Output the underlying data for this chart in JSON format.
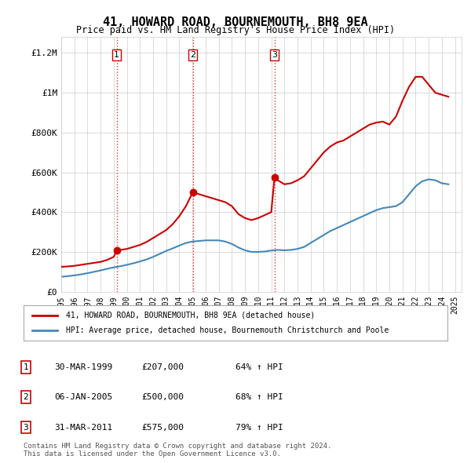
{
  "title": "41, HOWARD ROAD, BOURNEMOUTH, BH8 9EA",
  "subtitle": "Price paid vs. HM Land Registry's House Price Index (HPI)",
  "ylabel_ticks": [
    "£0",
    "£200K",
    "£400K",
    "£600K",
    "£800K",
    "£1M",
    "£1.2M"
  ],
  "ytick_values": [
    0,
    200000,
    400000,
    600000,
    800000,
    1000000,
    1200000
  ],
  "ylim": [
    0,
    1280000
  ],
  "xlim_start": 1995.0,
  "xlim_end": 2025.5,
  "sale_dates": [
    1999.23,
    2005.02,
    2011.25
  ],
  "sale_prices": [
    207000,
    500000,
    575000
  ],
  "sale_labels": [
    "1",
    "2",
    "3"
  ],
  "vline_color": "#cc0000",
  "vline_style": ":",
  "sale_color": "#cc0000",
  "hpi_color": "#6699cc",
  "hpi_line_color": "#4488bb",
  "background_color": "#ffffff",
  "grid_color": "#cccccc",
  "legend_label_red": "41, HOWARD ROAD, BOURNEMOUTH, BH8 9EA (detached house)",
  "legend_label_blue": "HPI: Average price, detached house, Bournemouth Christchurch and Poole",
  "table_rows": [
    [
      "1",
      "30-MAR-1999",
      "£207,000",
      "64% ↑ HPI"
    ],
    [
      "2",
      "06-JAN-2005",
      "£500,000",
      "68% ↑ HPI"
    ],
    [
      "3",
      "31-MAR-2011",
      "£575,000",
      "79% ↑ HPI"
    ]
  ],
  "footnote": "Contains HM Land Registry data © Crown copyright and database right 2024.\nThis data is licensed under the Open Government Licence v3.0.",
  "red_line_x": [
    1995.0,
    1995.5,
    1996.0,
    1996.5,
    1997.0,
    1997.5,
    1998.0,
    1998.5,
    1999.0,
    1999.23,
    1999.5,
    2000.0,
    2000.5,
    2001.0,
    2001.5,
    2002.0,
    2002.5,
    2003.0,
    2003.5,
    2004.0,
    2004.5,
    2005.02,
    2005.5,
    2006.0,
    2006.5,
    2007.0,
    2007.5,
    2008.0,
    2008.5,
    2009.0,
    2009.5,
    2010.0,
    2010.5,
    2011.0,
    2011.25,
    2011.5,
    2012.0,
    2012.5,
    2013.0,
    2013.5,
    2014.0,
    2014.5,
    2015.0,
    2015.5,
    2016.0,
    2016.5,
    2017.0,
    2017.5,
    2018.0,
    2018.5,
    2019.0,
    2019.5,
    2020.0,
    2020.5,
    2021.0,
    2021.5,
    2022.0,
    2022.5,
    2023.0,
    2023.5,
    2024.0,
    2024.5
  ],
  "red_line_y": [
    125000,
    127000,
    130000,
    135000,
    140000,
    145000,
    150000,
    160000,
    175000,
    207000,
    210000,
    215000,
    225000,
    235000,
    250000,
    270000,
    290000,
    310000,
    340000,
    380000,
    430000,
    500000,
    490000,
    480000,
    470000,
    460000,
    450000,
    430000,
    390000,
    370000,
    360000,
    370000,
    385000,
    400000,
    575000,
    560000,
    540000,
    545000,
    560000,
    580000,
    620000,
    660000,
    700000,
    730000,
    750000,
    760000,
    780000,
    800000,
    820000,
    840000,
    850000,
    855000,
    840000,
    880000,
    960000,
    1030000,
    1080000,
    1080000,
    1040000,
    1000000,
    990000,
    980000
  ],
  "blue_line_x": [
    1995.0,
    1995.5,
    1996.0,
    1996.5,
    1997.0,
    1997.5,
    1998.0,
    1998.5,
    1999.0,
    1999.5,
    2000.0,
    2000.5,
    2001.0,
    2001.5,
    2002.0,
    2002.5,
    2003.0,
    2003.5,
    2004.0,
    2004.5,
    2005.0,
    2005.5,
    2006.0,
    2006.5,
    2007.0,
    2007.5,
    2008.0,
    2008.5,
    2009.0,
    2009.5,
    2010.0,
    2010.5,
    2011.0,
    2011.5,
    2012.0,
    2012.5,
    2013.0,
    2013.5,
    2014.0,
    2014.5,
    2015.0,
    2015.5,
    2016.0,
    2016.5,
    2017.0,
    2017.5,
    2018.0,
    2018.5,
    2019.0,
    2019.5,
    2020.0,
    2020.5,
    2021.0,
    2021.5,
    2022.0,
    2022.5,
    2023.0,
    2023.5,
    2024.0,
    2024.5
  ],
  "blue_line_y": [
    75000,
    78000,
    82000,
    87000,
    93000,
    100000,
    107000,
    115000,
    122000,
    128000,
    135000,
    143000,
    152000,
    162000,
    175000,
    190000,
    205000,
    218000,
    232000,
    245000,
    252000,
    255000,
    258000,
    258000,
    258000,
    252000,
    240000,
    222000,
    208000,
    200000,
    200000,
    202000,
    207000,
    210000,
    208000,
    210000,
    215000,
    225000,
    245000,
    265000,
    285000,
    305000,
    320000,
    335000,
    350000,
    365000,
    380000,
    395000,
    410000,
    420000,
    425000,
    430000,
    450000,
    490000,
    530000,
    555000,
    565000,
    560000,
    545000,
    540000
  ]
}
